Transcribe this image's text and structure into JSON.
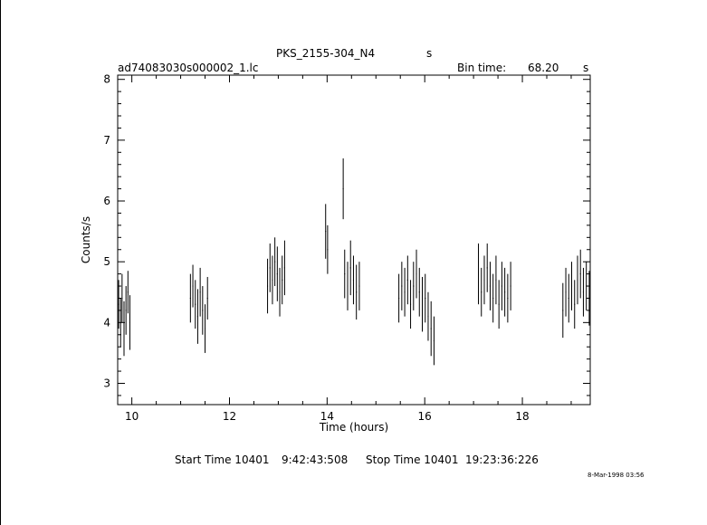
{
  "header": {
    "title": "PKS_2155-304_N4",
    "title_unit": "s",
    "filename": "ad74083030s000002_1.lc",
    "bin_label": "Bin time:",
    "bin_value": "68.20",
    "bin_unit": "s"
  },
  "footer": {
    "start_label": "Start Time 10401",
    "start_time": "9:42:43:508",
    "stop_label": "Stop Time 10401",
    "stop_time": "19:23:36:226",
    "stamp": "8-Mar-1998 03:56"
  },
  "chart_data": {
    "type": "scatter",
    "title": "PKS_2155-304_N4",
    "xlabel": "Time (hours)",
    "ylabel": "Counts/s",
    "xlim": [
      9.71,
      19.39
    ],
    "ylim": [
      2.65,
      8.07
    ],
    "xticks": [
      10,
      12,
      14,
      16,
      18
    ],
    "yticks": [
      3,
      4,
      5,
      6,
      7,
      8
    ],
    "grid": false,
    "series": [
      {
        "x": [
          9.73,
          9.77,
          9.8,
          9.84,
          9.88,
          9.92,
          9.96,
          11.2,
          11.25,
          11.3,
          11.35,
          11.4,
          11.45,
          11.5,
          11.55,
          12.78,
          12.83,
          12.88,
          12.93,
          12.98,
          13.03,
          13.08,
          13.13,
          13.97,
          14.01,
          14.33,
          14.36,
          14.42,
          14.48,
          14.54,
          14.6,
          14.66,
          15.47,
          15.53,
          15.59,
          15.65,
          15.71,
          15.77,
          15.83,
          15.89,
          15.95,
          16.01,
          16.07,
          16.13,
          16.19,
          17.1,
          17.16,
          17.22,
          17.28,
          17.34,
          17.4,
          17.46,
          17.52,
          17.58,
          17.64,
          17.7,
          17.76,
          18.83,
          18.89,
          18.95,
          19.01,
          19.07,
          19.13,
          19.19,
          19.25,
          19.31,
          19.37
        ],
        "y": [
          4.3,
          4.0,
          4.4,
          3.9,
          4.2,
          4.5,
          4.0,
          4.4,
          4.6,
          4.3,
          4.1,
          4.5,
          4.2,
          3.9,
          4.4,
          4.6,
          4.9,
          4.7,
          5.0,
          4.8,
          4.5,
          4.7,
          4.9,
          5.5,
          5.2,
          6.2,
          4.8,
          4.6,
          4.9,
          4.7,
          4.5,
          4.6,
          4.4,
          4.6,
          4.5,
          4.7,
          4.3,
          4.6,
          4.8,
          4.5,
          4.3,
          4.4,
          4.1,
          3.9,
          3.7,
          4.8,
          4.5,
          4.7,
          4.9,
          4.6,
          4.4,
          4.7,
          4.3,
          4.6,
          4.5,
          4.4,
          4.6,
          4.2,
          4.5,
          4.4,
          4.6,
          4.3,
          4.7,
          4.8,
          4.5,
          4.6,
          4.4
        ],
        "yerr": [
          0.4,
          0.4,
          0.4,
          0.45,
          0.4,
          0.35,
          0.45,
          0.4,
          0.35,
          0.4,
          0.45,
          0.4,
          0.4,
          0.4,
          0.35,
          0.45,
          0.4,
          0.4,
          0.4,
          0.45,
          0.4,
          0.4,
          0.45,
          0.45,
          0.4,
          0.5,
          0.4,
          0.4,
          0.45,
          0.4,
          0.45,
          0.4,
          0.4,
          0.4,
          0.4,
          0.4,
          0.4,
          0.4,
          0.4,
          0.4,
          0.45,
          0.4,
          0.4,
          0.45,
          0.4,
          0.5,
          0.4,
          0.4,
          0.4,
          0.4,
          0.4,
          0.4,
          0.4,
          0.4,
          0.4,
          0.4,
          0.4,
          0.45,
          0.4,
          0.4,
          0.4,
          0.4,
          0.4,
          0.4,
          0.4,
          0.4,
          0.45
        ]
      }
    ]
  }
}
